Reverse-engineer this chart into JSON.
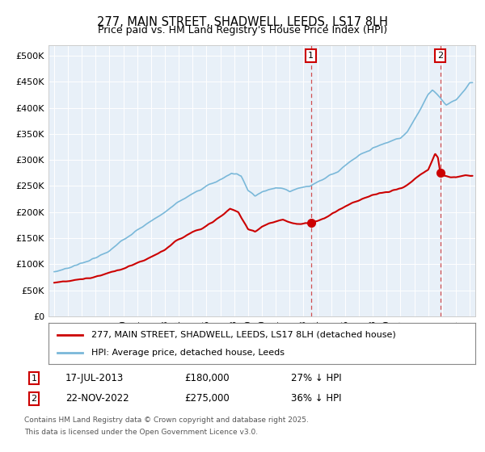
{
  "title": "277, MAIN STREET, SHADWELL, LEEDS, LS17 8LH",
  "subtitle": "Price paid vs. HM Land Registry's House Price Index (HPI)",
  "hpi_color": "#7ab8d9",
  "price_color": "#cc0000",
  "dashed_color": "#cc3333",
  "plot_bg": "#e8f0f8",
  "legend_label_price": "277, MAIN STREET, SHADWELL, LEEDS, LS17 8LH (detached house)",
  "legend_label_hpi": "HPI: Average price, detached house, Leeds",
  "annotation1_date": "17-JUL-2013",
  "annotation1_price": "£180,000",
  "annotation1_note": "27% ↓ HPI",
  "annotation2_date": "22-NOV-2022",
  "annotation2_price": "£275,000",
  "annotation2_note": "36% ↓ HPI",
  "footnote1": "Contains HM Land Registry data © Crown copyright and database right 2025.",
  "footnote2": "This data is licensed under the Open Government Licence v3.0.",
  "yticks": [
    0,
    50000,
    100000,
    150000,
    200000,
    250000,
    300000,
    350000,
    400000,
    450000,
    500000
  ],
  "ylim": [
    0,
    520000
  ],
  "purchase1_year": 2013.538,
  "purchase1_price": 180000,
  "purchase2_year": 2022.877,
  "purchase2_price": 275000
}
